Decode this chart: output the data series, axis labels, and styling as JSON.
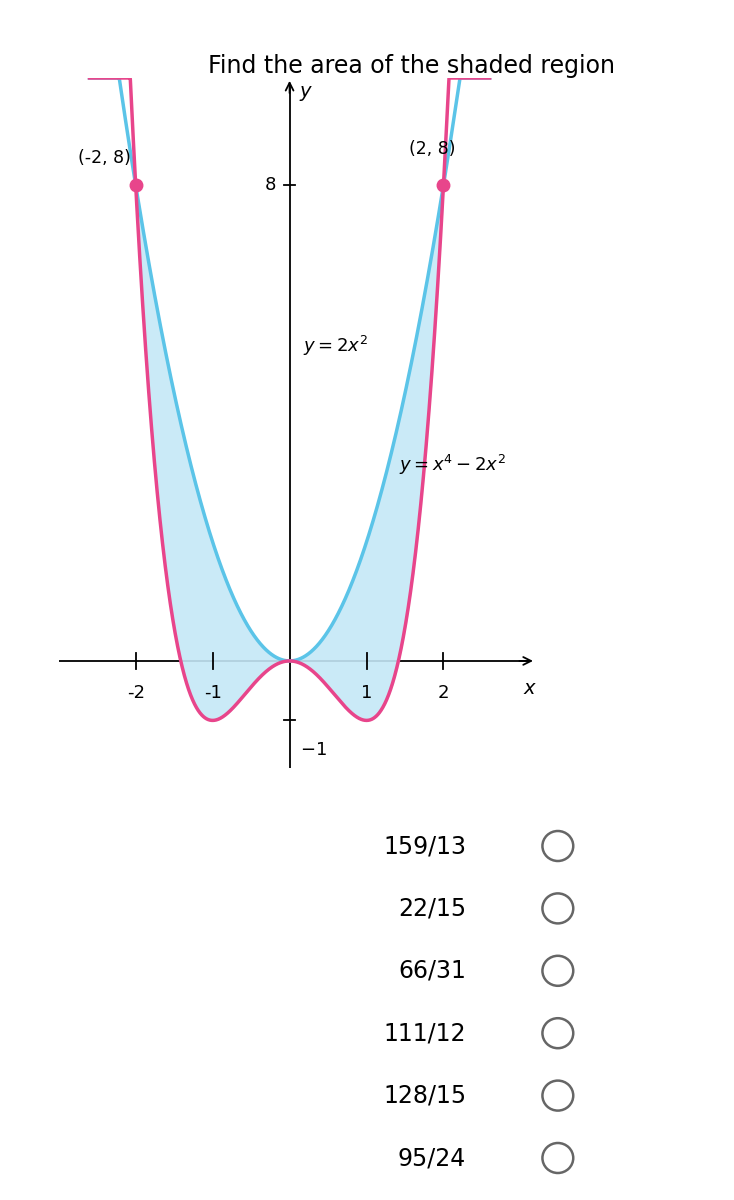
{
  "title": "Find the area of the shaded region",
  "title_fontsize": 17,
  "point1": [
    -2,
    8
  ],
  "point2": [
    2,
    8
  ],
  "point_label1": "(-2, 8)",
  "point_label2": "(2, 8)",
  "point_color": "#E8458B",
  "curve1_color": "#5BC4E8",
  "curve2_color": "#E8458B",
  "shade_color": "#C5E8F7",
  "shade_alpha": 0.9,
  "xlim": [
    -3.0,
    3.2
  ],
  "ylim": [
    -1.8,
    9.8
  ],
  "xticks": [
    -2,
    -1,
    1,
    2
  ],
  "bg_color": "#ffffff",
  "choices": [
    "159/13",
    "22/15",
    "66/31",
    "111/12",
    "128/15",
    "95/24"
  ],
  "answer_fontsize": 17,
  "circle_color": "#666666"
}
